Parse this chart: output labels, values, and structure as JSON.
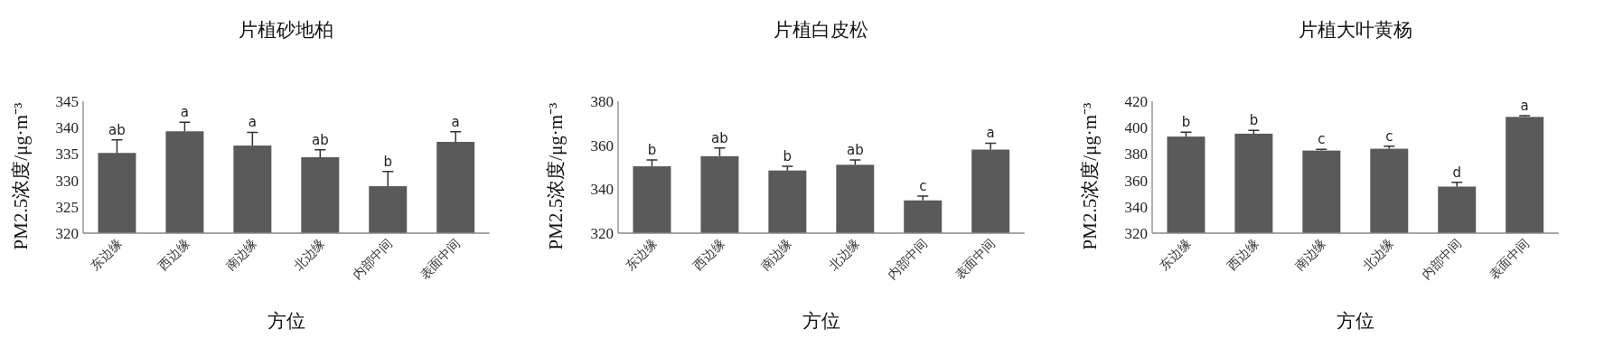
{
  "chart_data": [
    {
      "type": "bar",
      "title": "片植砂地柏",
      "xlabel": "方位",
      "ylabel": "PM2.5浓度/μg·m⁻³",
      "categories": [
        "东边缘",
        "西边缘",
        "南边缘",
        "北边缘",
        "内部中间",
        "表面中间"
      ],
      "color": "#5a5a5a",
      "values": [
        335.2,
        339.3,
        336.6,
        334.4,
        328.9,
        337.3
      ],
      "errors": [
        [
          335.2,
          337.7
        ],
        [
          339.3,
          341.0
        ],
        [
          336.6,
          339.1
        ],
        [
          334.4,
          335.8
        ],
        [
          328.9,
          331.7
        ],
        [
          337.3,
          339.2
        ]
      ],
      "ylim": [
        320,
        345
      ],
      "yticks": [
        320,
        325,
        330,
        335,
        340,
        345
      ],
      "annotations": [
        "ab",
        "a",
        "a",
        "ab",
        "b",
        "a"
      ]
    },
    {
      "type": "bar",
      "title": "片植白皮松",
      "xlabel": "方位",
      "ylabel": "PM2.5浓度/μg·m⁻³",
      "categories": [
        "东边缘",
        "西边缘",
        "南边缘",
        "北边缘",
        "内部中间",
        "表面中间"
      ],
      "color": "#5a5a5a",
      "values": [
        350.4,
        355.0,
        348.5,
        351.1,
        334.9,
        358.0
      ],
      "errors": [
        [
          350.4,
          353.3
        ],
        [
          355.0,
          358.7
        ],
        [
          348.5,
          350.4
        ],
        [
          351.1,
          353.3
        ],
        [
          334.9,
          336.9
        ],
        [
          358.0,
          360.9
        ]
      ],
      "ylim": [
        320,
        380
      ],
      "yticks": [
        320,
        340,
        360,
        380
      ],
      "annotations": [
        "b",
        "ab",
        "b",
        "ab",
        "c",
        "a"
      ]
    },
    {
      "type": "bar",
      "title": "片植大叶黄杨",
      "xlabel": "方位",
      "ylabel": "PM2.5浓度/μg·m⁻³",
      "categories": [
        "东边缘",
        "西边缘",
        "南边缘",
        "北边缘",
        "内部中间",
        "表面中间"
      ],
      "color": "#5a5a5a",
      "values": [
        393.2,
        395.4,
        382.6,
        384.0,
        355.3,
        408.1
      ],
      "errors": [
        [
          393.2,
          396.5
        ],
        [
          395.4,
          397.9
        ],
        [
          382.6,
          383.5
        ],
        [
          384.0,
          386.0
        ],
        [
          355.3,
          358.5
        ],
        [
          408.1,
          409.0
        ]
      ],
      "ylim": [
        320,
        420
      ],
      "yticks": [
        320,
        340,
        360,
        380,
        400,
        420
      ],
      "annotations": [
        "b",
        "b",
        "c",
        "c",
        "d",
        "a"
      ]
    }
  ]
}
